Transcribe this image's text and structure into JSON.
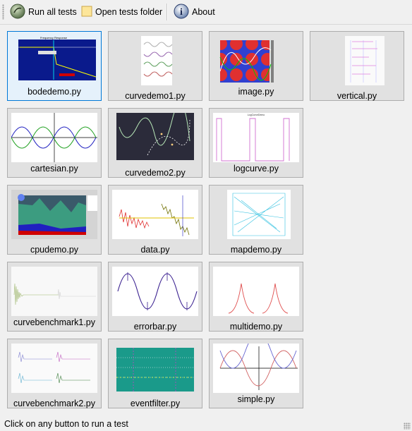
{
  "toolbar": {
    "run_all": "Run all tests",
    "open_folder": "Open tests folder",
    "about": "About"
  },
  "tests": [
    {
      "label": "bodedemo.py",
      "icon": "bode-plot-thumbnail",
      "selected": true
    },
    {
      "label": "curvedemo1.py",
      "icon": "curve-plot-thumbnail"
    },
    {
      "label": "image.py",
      "icon": "image-plot-thumbnail"
    },
    {
      "label": "vertical.py",
      "icon": "vertical-plot-thumbnail"
    },
    {
      "label": "cartesian.py",
      "icon": "cartesian-plot-thumbnail"
    },
    {
      "label": "curvedemo2.py",
      "icon": "curve-plot-thumbnail"
    },
    {
      "label": "logcurve.py",
      "icon": "log-curve-thumbnail"
    },
    {
      "label": "cpudemo.py",
      "icon": "cpu-plot-thumbnail"
    },
    {
      "label": "data.py",
      "icon": "data-plot-thumbnail"
    },
    {
      "label": "mapdemo.py",
      "icon": "map-plot-thumbnail"
    },
    {
      "label": "curvebenchmark1.py",
      "icon": "benchmark-thumbnail"
    },
    {
      "label": "errorbar.py",
      "icon": "errorbar-plot-thumbnail"
    },
    {
      "label": "multidemo.py",
      "icon": "multi-plot-thumbnail"
    },
    {
      "label": "curvebenchmark2.py",
      "icon": "benchmark-thumbnail"
    },
    {
      "label": "eventfilter.py",
      "icon": "event-filter-thumbnail"
    },
    {
      "label": "simple.py",
      "icon": "simple-plot-thumbnail"
    }
  ],
  "status_text": "Click on any button to run a test"
}
